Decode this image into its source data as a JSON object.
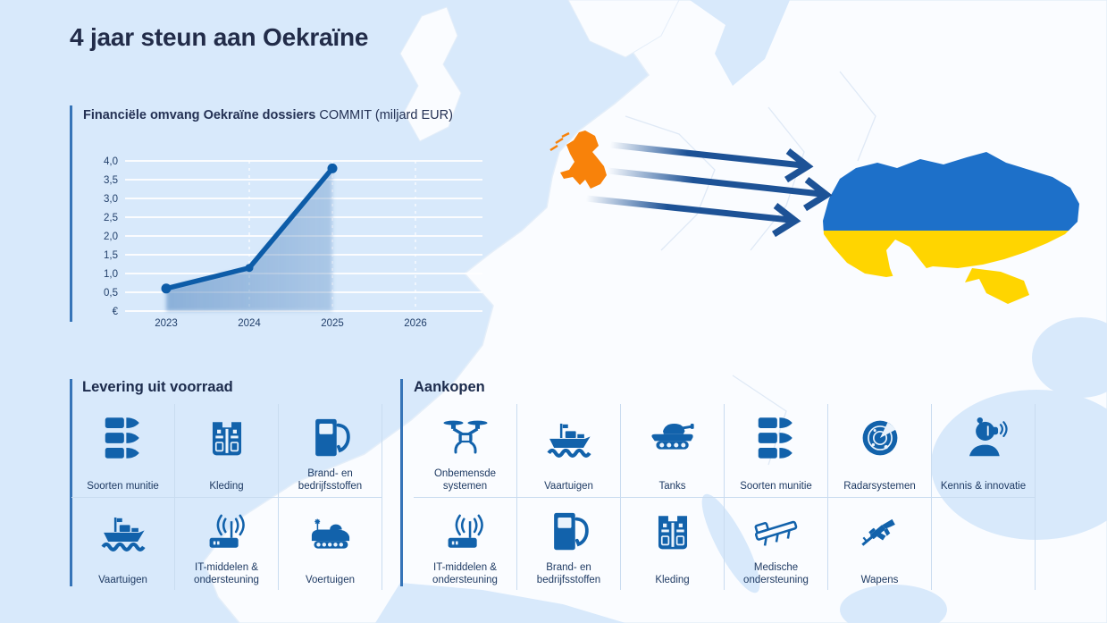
{
  "page": {
    "title": "4 jaar steun aan Oekraïne"
  },
  "chart": {
    "title_bold": "Financiële omvang Oekraïne dossiers",
    "title_regular": " COMMIT (miljard EUR)",
    "y_tick_labels": [
      "4,0",
      "3,5",
      "3,0",
      "2,5",
      "2,0",
      "1,5",
      "1,0",
      "0,5",
      "€"
    ],
    "x_tick_labels": [
      "2023",
      "2024",
      "2025",
      "2026"
    ]
  },
  "chart_data": {
    "type": "line",
    "x": [
      2023,
      2024,
      2025
    ],
    "values": [
      0.6,
      1.15,
      3.8
    ],
    "title": "Financiële omvang Oekraïne dossiers COMMIT (miljard EUR)",
    "xlabel": "",
    "ylabel": "miljard EUR",
    "ylim": [
      0,
      4.0
    ],
    "xticks": [
      2023,
      2024,
      2025,
      2026
    ],
    "grid": true,
    "area_fill": true,
    "legend": "none"
  },
  "map": {
    "netherlands_color": "#f8820a",
    "ukraine_flag_blue": "#1d70c9",
    "ukraine_flag_yellow": "#ffd500",
    "arrow_color": "#1d5296",
    "sea_color": "#d8e9fb",
    "land_color": "#fafcff",
    "arrow_count": 3
  },
  "colors": {
    "icon_blue": "#1262ab",
    "line_blue": "#0d5ca8",
    "accent_bar": "#3674b8",
    "heading_text": "#1c2b4c",
    "label_text": "#1e3a63",
    "divider": "#c9dcf0"
  },
  "sections": [
    {
      "title": "Levering uit voorraad",
      "columns": 3,
      "items": [
        {
          "label": "Soorten munitie",
          "icon": "ammunition-icon"
        },
        {
          "label": "Kleding",
          "icon": "vest-icon"
        },
        {
          "label": "Brand- en bedrijfsstoffen",
          "icon": "fuel-pump-icon"
        },
        {
          "label": "Vaartuigen",
          "icon": "ship-icon"
        },
        {
          "label": "IT-middelen & ondersteuning",
          "icon": "router-icon"
        },
        {
          "label": "Voertuigen",
          "icon": "armored-vehicle-icon"
        }
      ]
    },
    {
      "title": "Aankopen",
      "columns": 6,
      "items": [
        {
          "label": "Onbemensde systemen",
          "icon": "drone-icon"
        },
        {
          "label": "Vaartuigen",
          "icon": "ship-icon"
        },
        {
          "label": "Tanks",
          "icon": "tank-icon"
        },
        {
          "label": "Soorten munitie",
          "icon": "ammunition-icon"
        },
        {
          "label": "Radarsystemen",
          "icon": "radar-icon"
        },
        {
          "label": "Kennis & innovatie",
          "icon": "vr-innovation-icon"
        },
        {
          "label": "IT-middelen & ondersteuning",
          "icon": "router-icon"
        },
        {
          "label": "Brand- en bedrijfsstoffen",
          "icon": "fuel-pump-icon"
        },
        {
          "label": "Kleding",
          "icon": "vest-icon"
        },
        {
          "label": "Medische ondersteuning",
          "icon": "stretcher-icon"
        },
        {
          "label": "Wapens",
          "icon": "rifle-icon"
        },
        {
          "label": "",
          "icon": ""
        }
      ]
    }
  ]
}
